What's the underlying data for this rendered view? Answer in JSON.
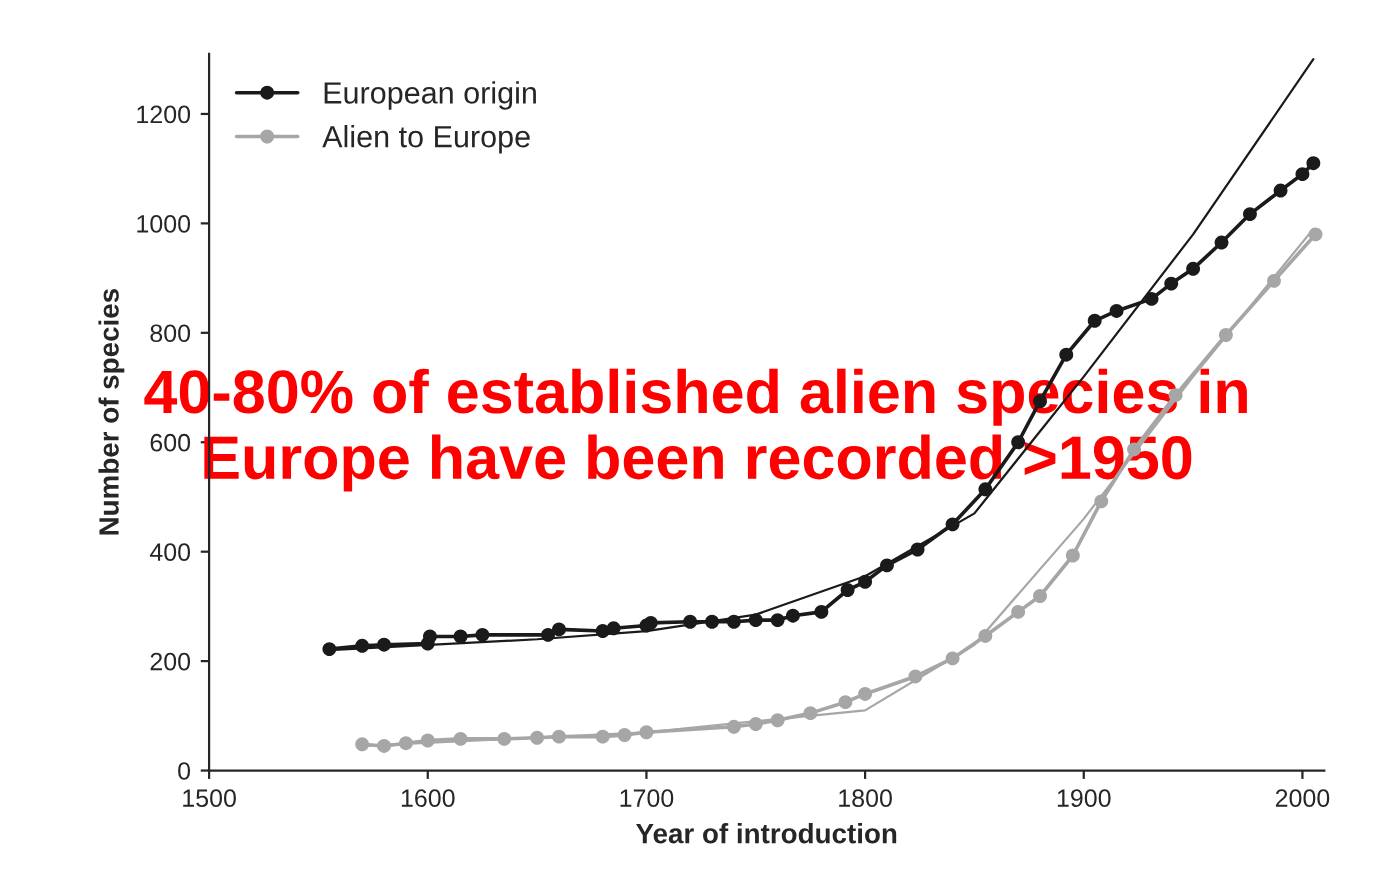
{
  "chart_data": {
    "type": "line",
    "xlabel": "Year of introduction",
    "ylabel": "Number of species",
    "annotations": [
      "40-80% of established alien species in\nEurope have been recorded >1950"
    ],
    "xlim": [
      1500,
      2010
    ],
    "xticks": [
      1500,
      1600,
      1700,
      1800,
      1900,
      2000
    ],
    "ylim": [
      0,
      1310
    ],
    "yticks": [
      0,
      200,
      400,
      600,
      800,
      1000,
      1200
    ],
    "grid": false,
    "legend": "top left",
    "marker": "circle",
    "series": [
      {
        "name": "European origin",
        "color": "#1a1a1a",
        "x": [
          1555,
          1570,
          1580,
          1600,
          1601,
          1615,
          1625,
          1655,
          1660,
          1680,
          1685,
          1700,
          1702,
          1720,
          1730,
          1740,
          1750,
          1760,
          1767,
          1780,
          1792,
          1800,
          1810,
          1824,
          1840,
          1855,
          1870,
          1880,
          1892,
          1905,
          1915,
          1931,
          1940,
          1950,
          1963,
          1976,
          1990,
          2000,
          2005
        ],
        "values": [
          222,
          228,
          230,
          232,
          245,
          245,
          248,
          248,
          258,
          255,
          260,
          265,
          270,
          272,
          272,
          272,
          275,
          275,
          283,
          290,
          330,
          345,
          375,
          404,
          450,
          514,
          600,
          675,
          760,
          822,
          840,
          862,
          890,
          917,
          965,
          1017,
          1060,
          1090,
          1110
        ]
      },
      {
        "name": "Alien to Europe",
        "color": "#a6a6a6",
        "x": [
          1570,
          1580,
          1590,
          1600,
          1615,
          1635,
          1650,
          1660,
          1680,
          1690,
          1700,
          1740,
          1750,
          1760,
          1775,
          1791,
          1800,
          1823,
          1840,
          1855,
          1870,
          1880,
          1895,
          1908,
          1923,
          1942,
          1965,
          1987,
          2006
        ],
        "values": [
          48,
          45,
          50,
          55,
          58,
          58,
          60,
          62,
          62,
          65,
          70,
          80,
          85,
          92,
          105,
          125,
          140,
          172,
          205,
          246,
          290,
          319,
          393,
          492,
          587,
          686,
          796,
          895,
          980
        ]
      },
      {
        "type": "line",
        "color": "#1a1a1a",
        "marker": "none",
        "x": [
          1555,
          1650,
          1700,
          1750,
          1800,
          1850,
          1900,
          1950,
          2005
        ],
        "values": [
          220,
          240,
          255,
          285,
          355,
          470,
          720,
          980,
          1300
        ]
      },
      {
        "type": "line",
        "color": "#a6a6a6",
        "marker": "none",
        "x": [
          1570,
          1700,
          1800,
          1850,
          1900,
          1950,
          2005
        ],
        "values": [
          45,
          70,
          110,
          230,
          460,
          720,
          990
        ]
      }
    ]
  }
}
